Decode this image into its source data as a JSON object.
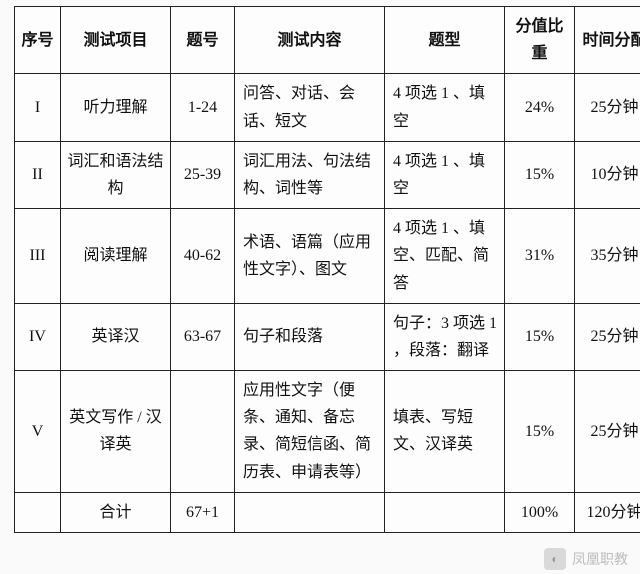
{
  "table": {
    "headers": {
      "index": "序号",
      "item": "测试项目",
      "qno": "题号",
      "content": "测试内容",
      "qtype": "题型",
      "weight": "分值比重",
      "time": "时间分配"
    },
    "rows": [
      {
        "index": "I",
        "item": "听力理解",
        "qno": "1-24",
        "content": "问答、对话、会话、短文",
        "qtype": "4 项选 1 、填空",
        "weight": "24%",
        "time": "25分钟"
      },
      {
        "index": "II",
        "item": "词汇和语法结构",
        "qno": "25-39",
        "content": "词汇用法、句法结构、词性等",
        "qtype": "4 项选 1 、填空",
        "weight": "15%",
        "time": "10分钟"
      },
      {
        "index": "III",
        "item": "阅读理解",
        "qno": "40-62",
        "content": "术语、语篇（应用性文字）、图文",
        "qtype": "4 项选 1 、填空、匹配、简答",
        "weight": "31%",
        "time": "35分钟"
      },
      {
        "index": "IV",
        "item": "英译汉",
        "qno": "63-67",
        "content": "句子和段落",
        "qtype": "句子：3 项选 1 ，段落：翻译",
        "weight": "15%",
        "time": "25分钟"
      },
      {
        "index": "V",
        "item": "英文写作 / 汉译英",
        "qno": "",
        "content": "应用性文字（便条、通知、备忘录、简短信函、简历表、申请表等）",
        "qtype": "填表、写短文、汉译英",
        "weight": "15%",
        "time": "25分钟"
      }
    ],
    "total": {
      "label": "合计",
      "qno": "67+1",
      "weight": "100%",
      "time": "120分钟"
    }
  },
  "watermark": {
    "logo_glyph": "◐",
    "text": "凤凰职教"
  },
  "style": {
    "background_color": "#fafafa",
    "border_color": "#222222",
    "text_color": "#111111",
    "font_size_pt": 12
  }
}
